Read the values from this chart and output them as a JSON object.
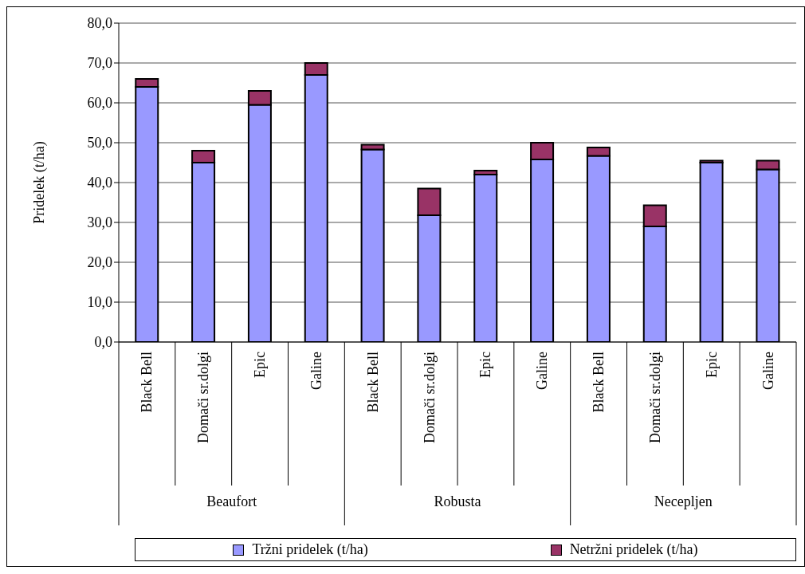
{
  "chart_data": {
    "type": "bar",
    "stacked": true,
    "ylabel": "Pridelek (t/ha)",
    "categories": [
      "Black Bell",
      "Domači sr.dolgi",
      "Epic",
      "Galine",
      "Black Bell",
      "Domači sr.dolgi",
      "Epic",
      "Galine",
      "Black Bell",
      "Domači sr.dolgi",
      "Epic",
      "Galine"
    ],
    "annotations": [
      "Beaufort",
      "Robusta",
      "Necepljen"
    ],
    "series": [
      {
        "name": "Tržni pridelek (t/ha)",
        "color": "#9999ff",
        "values": [
          64,
          45,
          59.5,
          67,
          48.3,
          31.8,
          42,
          45.8,
          46.7,
          29,
          45,
          43.3
        ]
      },
      {
        "name": "Netržni pridelek (t/ha)",
        "color": "#993366",
        "values": [
          2,
          3,
          3.5,
          3,
          1.2,
          6.7,
          1,
          4.2,
          2.1,
          5.3,
          0.5,
          2.2
        ]
      }
    ],
    "ylim": [
      0,
      80
    ],
    "yticks": [
      {
        "value": 0,
        "label": "0,0"
      },
      {
        "value": 10,
        "label": "10,0"
      },
      {
        "value": 20,
        "label": "20,0"
      },
      {
        "value": 30,
        "label": "30,0"
      },
      {
        "value": 40,
        "label": "40,0"
      },
      {
        "value": 50,
        "label": "50,0"
      },
      {
        "value": 60,
        "label": "60,0"
      },
      {
        "value": 70,
        "label": "70,0"
      },
      {
        "value": 80,
        "label": "80,0"
      }
    ],
    "grid": "y",
    "legend": "bottom"
  }
}
